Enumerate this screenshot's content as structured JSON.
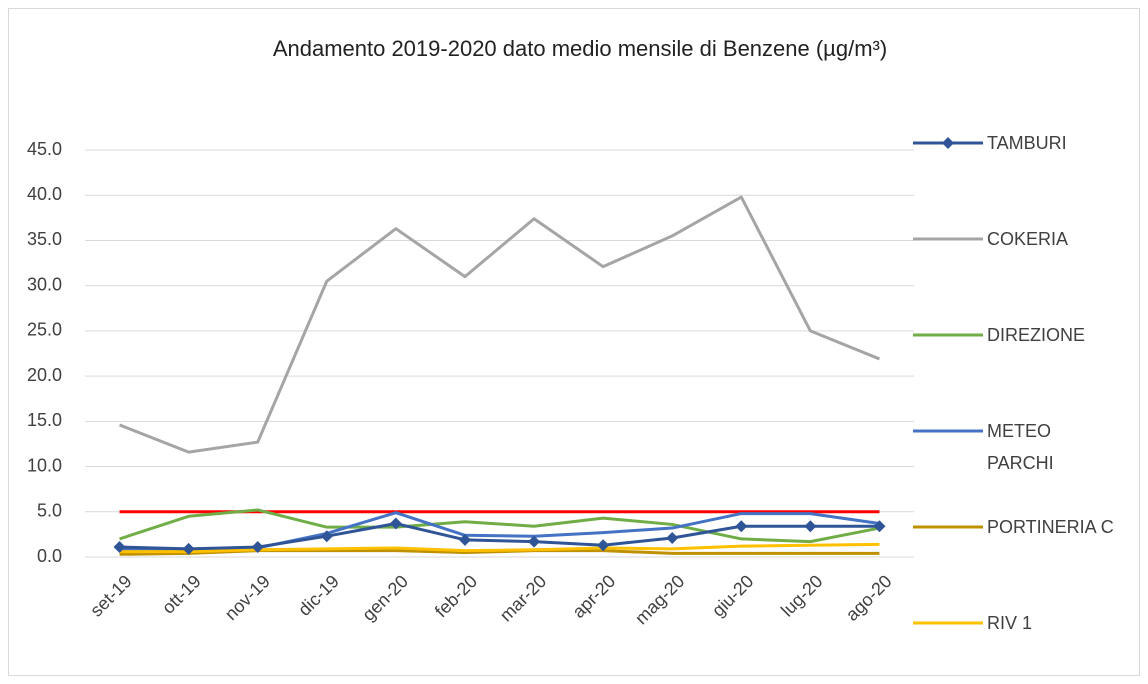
{
  "chart_data": {
    "type": "line",
    "title": "Andamento 2019-2020 dato medio mensile di Benzene (µg/m³)",
    "categories": [
      "set-19",
      "ott-19",
      "nov-19",
      "dic-19",
      "gen-20",
      "feb-20",
      "mar-20",
      "apr-20",
      "mag-20",
      "giu-20",
      "lug-20",
      "ago-20"
    ],
    "ylim": [
      0,
      45
    ],
    "yticks": [
      {
        "value": 0,
        "label": "0.0"
      },
      {
        "value": 5,
        "label": "5.0"
      },
      {
        "value": 10,
        "label": "10.0"
      },
      {
        "value": 15,
        "label": "15.0"
      },
      {
        "value": 20,
        "label": "20.0"
      },
      {
        "value": 25,
        "label": "25.0"
      },
      {
        "value": 30,
        "label": "30.0"
      },
      {
        "value": 35,
        "label": "35.0"
      },
      {
        "value": 40,
        "label": "40.0"
      },
      {
        "value": 45,
        "label": "45.0"
      }
    ],
    "grid": true,
    "legend": "right",
    "series": [
      {
        "color": "#ff0000",
        "values": [
          5,
          5,
          5,
          5,
          5,
          5,
          5,
          5,
          5,
          5,
          5,
          5
        ]
      },
      {
        "name": "COKERIA",
        "color": "#a5a5a5",
        "values": [
          14.6,
          11.6,
          12.7,
          30.5,
          36.3,
          31.0,
          37.4,
          32.1,
          35.5,
          39.8,
          25.0,
          21.9
        ]
      },
      {
        "name": "DIREZIONE",
        "color": "#70ad47",
        "values": [
          2.0,
          4.5,
          5.2,
          3.3,
          3.3,
          3.9,
          3.4,
          4.3,
          3.6,
          2.0,
          1.7,
          3.2
        ]
      },
      {
        "name": "METEO PARCHI",
        "color": "#4472c4",
        "values": [
          0.8,
          0.7,
          1.0,
          2.6,
          4.9,
          2.4,
          2.3,
          2.7,
          3.2,
          4.8,
          4.8,
          3.7
        ]
      },
      {
        "name": "PORTINERIA C",
        "color": "#bf9000",
        "values": [
          0.3,
          0.4,
          0.7,
          0.7,
          0.7,
          0.5,
          0.7,
          0.7,
          0.4,
          0.4,
          0.4,
          0.4
        ]
      },
      {
        "name": "RIV 1",
        "color": "#ffc000",
        "values": [
          0.6,
          0.6,
          0.8,
          0.9,
          1.0,
          0.7,
          0.8,
          1.0,
          0.9,
          1.2,
          1.3,
          1.4
        ]
      },
      {
        "name": "TAMBURI",
        "color": "#2f5597",
        "marker": "diamond",
        "values": [
          1.1,
          0.9,
          1.1,
          2.3,
          3.7,
          1.9,
          1.7,
          1.3,
          2.1,
          3.4,
          3.4,
          3.4
        ]
      }
    ]
  }
}
